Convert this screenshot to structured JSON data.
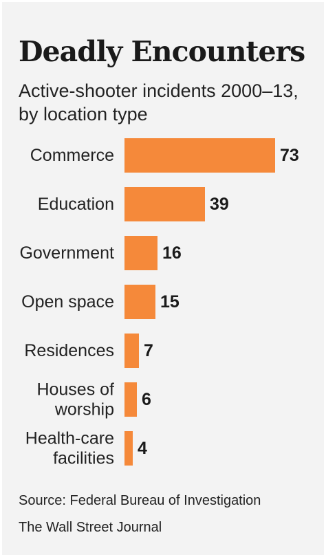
{
  "header": {
    "title": "Deadly Encounters",
    "subtitle": "Active-shooter incidents 2000–13, by location type"
  },
  "footer": {
    "source": "Source: Federal Bureau of Investigation",
    "credit": "The Wall Street Journal"
  },
  "colors": {
    "bar": "#f5893a",
    "background": "#f3f3f3"
  },
  "chart_data": {
    "type": "bar",
    "orientation": "horizontal",
    "title": "Deadly Encounters",
    "subtitle": "Active-shooter incidents 2000–13, by location type",
    "categories": [
      [
        "Commerce"
      ],
      [
        "Education"
      ],
      [
        "Government"
      ],
      [
        "Open space"
      ],
      [
        "Residences"
      ],
      [
        "Houses of",
        "worship"
      ],
      [
        "Health-care",
        "facilities"
      ]
    ],
    "values": [
      73,
      39,
      16,
      15,
      7,
      6,
      4
    ],
    "value_labels": [
      "73",
      "39",
      "16",
      "15",
      "7",
      "6",
      "4"
    ],
    "xlim": [
      0,
      73
    ],
    "grid": false,
    "legend": "none"
  }
}
